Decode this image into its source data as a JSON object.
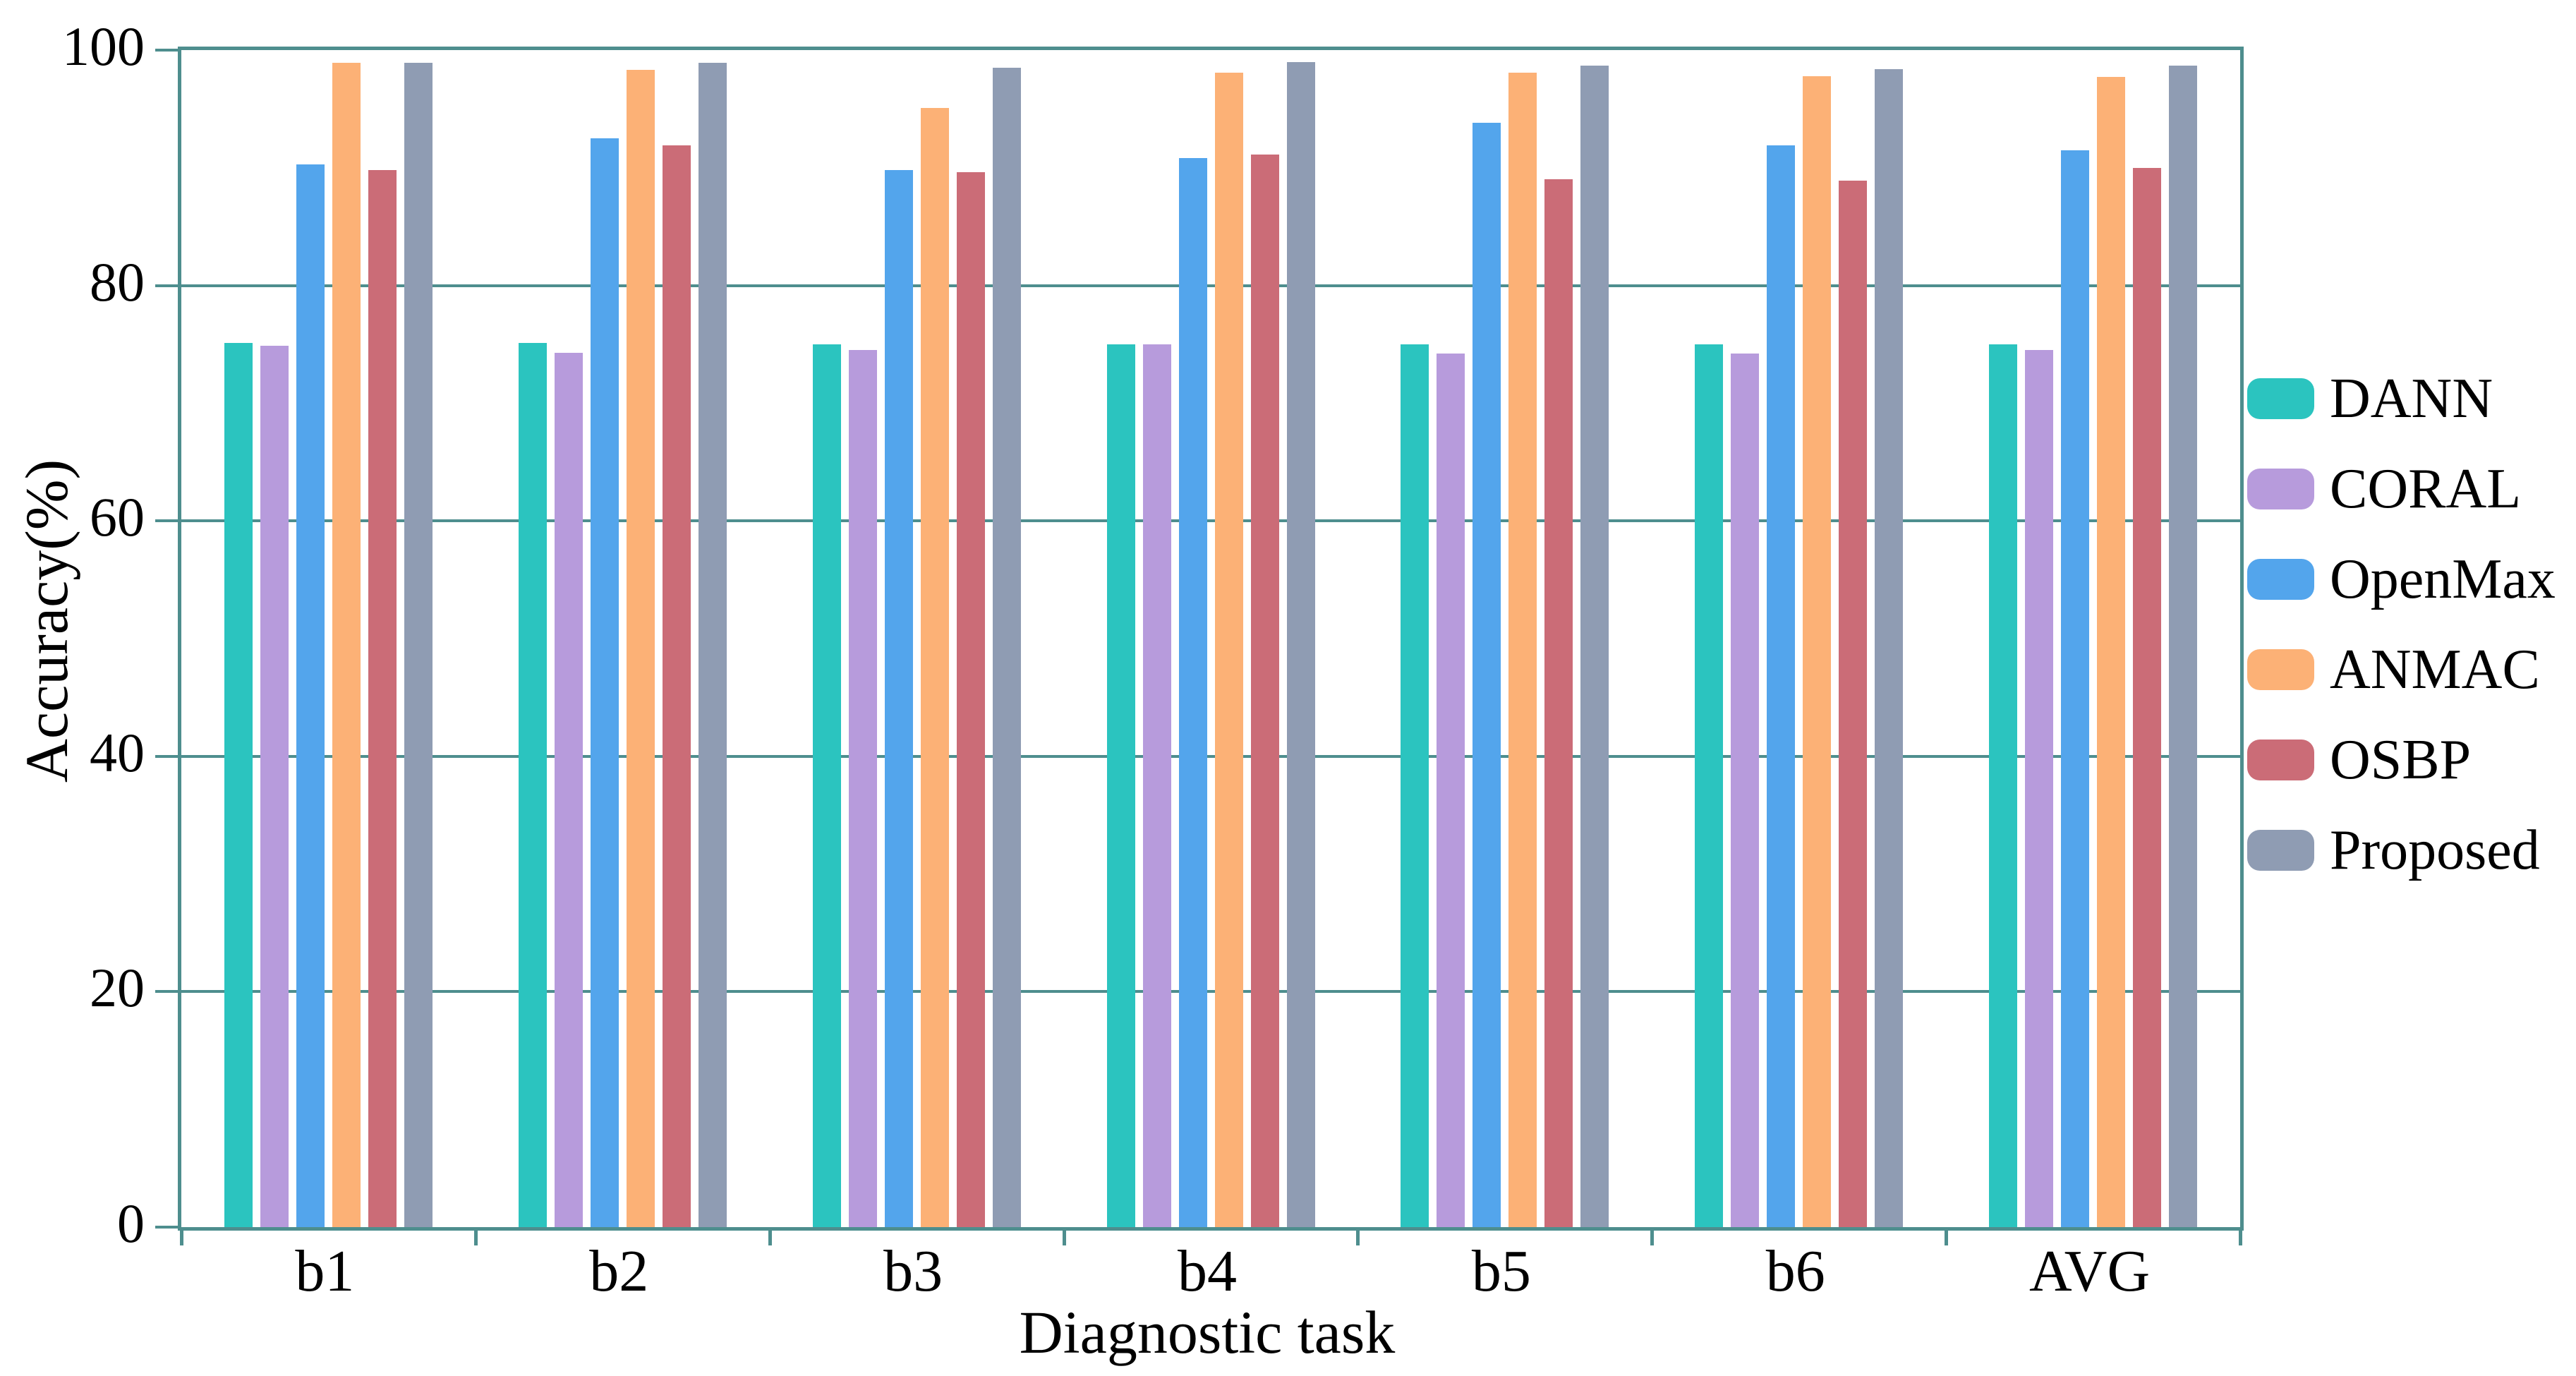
{
  "chart_data": {
    "type": "bar",
    "title": "",
    "xlabel": "Diagnostic task",
    "ylabel": "Accuracy(%)",
    "categories": [
      "b1",
      "b2",
      "b3",
      "b4",
      "b5",
      "b6",
      "AVG"
    ],
    "series": [
      {
        "name": "DANN",
        "color": "#2bc4bf",
        "values": [
          75.1,
          75.1,
          75.0,
          75.0,
          75.0,
          75.0,
          75.0
        ]
      },
      {
        "name": "CORAL",
        "color": "#b79bdc",
        "values": [
          74.9,
          74.3,
          74.5,
          75.0,
          74.2,
          74.2,
          74.5
        ]
      },
      {
        "name": "OpenMax",
        "color": "#53a5ec",
        "values": [
          90.3,
          92.5,
          89.8,
          90.8,
          93.8,
          91.9,
          91.5
        ]
      },
      {
        "name": "ANMAC",
        "color": "#fcb176",
        "values": [
          98.9,
          98.3,
          95.1,
          98.1,
          98.1,
          97.8,
          97.7
        ]
      },
      {
        "name": "OSBP",
        "color": "#cb6c77",
        "values": [
          89.8,
          91.9,
          89.6,
          91.1,
          89.0,
          88.9,
          90.0
        ]
      },
      {
        "name": "Proposed",
        "color": "#8f9cb3",
        "values": [
          98.9,
          98.9,
          98.5,
          99.0,
          98.7,
          98.4,
          98.7
        ]
      }
    ],
    "ylim": [
      0,
      100
    ],
    "yticks": [
      0,
      20,
      40,
      60,
      80,
      100
    ],
    "grid": true,
    "legend_position": "right-middle",
    "axis_color": "#4e8e8e",
    "background_color": "#ffffff",
    "text_color": "#000000"
  }
}
